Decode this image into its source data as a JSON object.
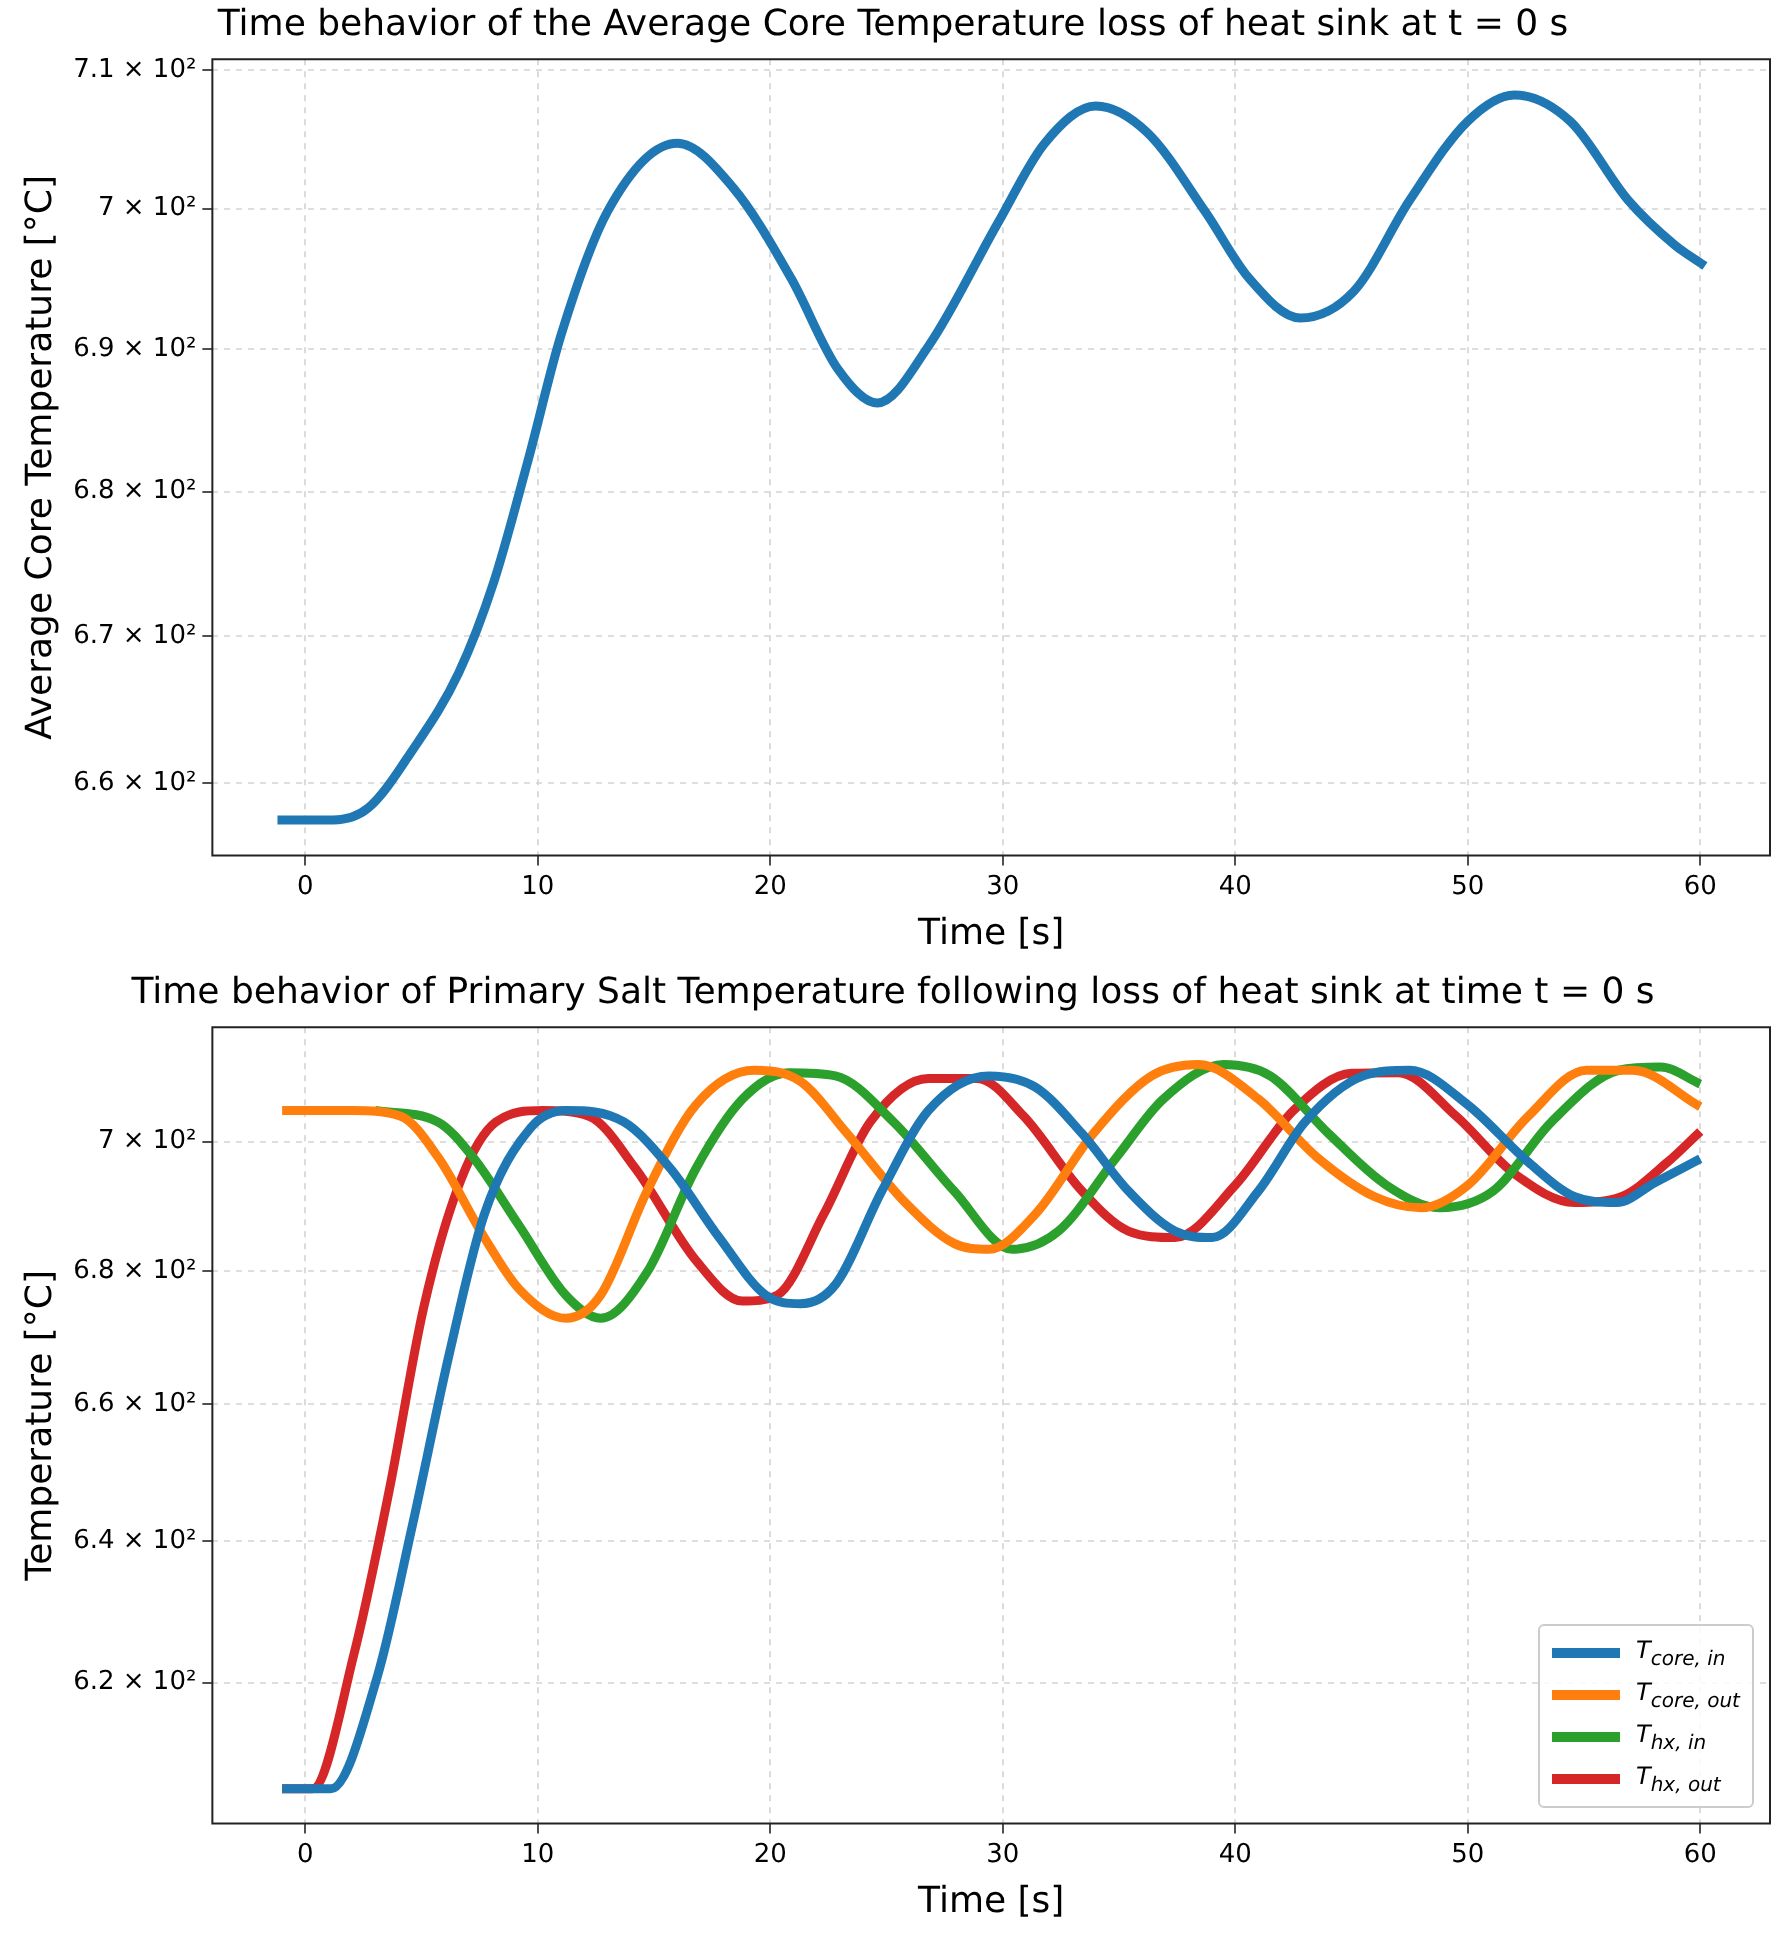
{
  "chart_data": [
    {
      "type": "line",
      "title": "Time behavior of the Average Core Temperature loss of heat sink at t = 0 s",
      "xlabel": "Time [s]",
      "ylabel": "Average Core Temperature [°C]",
      "series": [
        {
          "color": "#1f77b4",
          "x": [
            -1.2,
            1.2,
            2.7,
            4.6,
            6.6,
            8.1,
            9.6,
            11,
            13,
            16,
            18.4,
            20.9,
            22.9,
            24.6,
            26.8,
            29.8,
            31.8,
            34,
            36.2,
            38.7,
            40.6,
            42.8,
            45.1,
            47.5,
            50,
            52,
            54.4,
            56.9,
            58.9,
            60.2
          ],
          "values": [
            657.5,
            657.5,
            658.3,
            662.2,
            667.5,
            673.7,
            682.3,
            691.0,
            699.8,
            704.7,
            701.5,
            695.0,
            688.6,
            686.2,
            690.2,
            699.0,
            704.7,
            707.4,
            705.5,
            699.8,
            695.0,
            692.2,
            694.1,
            700.6,
            706.3,
            708.2,
            706.3,
            700.6,
            697.4,
            695.9
          ]
        }
      ],
      "xlim": [
        -4,
        63
      ],
      "xticks": [
        0,
        10,
        20,
        30,
        40,
        50,
        60
      ],
      "ylim": [
        655.1,
        710.8
      ],
      "yticks": [
        {
          "value": 660,
          "label": "6.6 × 10²"
        },
        {
          "value": 670,
          "label": "6.7 × 10²"
        },
        {
          "value": 680,
          "label": "6.8 × 10²"
        },
        {
          "value": 690,
          "label": "6.9 × 10²"
        },
        {
          "value": 700,
          "label": "7 × 10²"
        },
        {
          "value": 710,
          "label": "7.1 × 10²"
        }
      ],
      "log": "y",
      "grid": true
    },
    {
      "type": "line",
      "title": "Time behavior of Primary Salt Temperature following loss of heat sink at time t = 0 s",
      "xlabel": "Time [s]",
      "ylabel": "Temperature [°C]",
      "series": [
        {
          "name": "T$_{core, in}$",
          "color": "#1f77b4",
          "x": [
            -1,
            1.1,
            3.1,
            4.6,
            6.2,
            7.7,
            9.7,
            11.2,
            13.7,
            15.7,
            17.8,
            19.8,
            21.3,
            22.8,
            24.8,
            26.8,
            29.4,
            31.4,
            33.4,
            35.4,
            37.4,
            39,
            41,
            43,
            45.5,
            47.5,
            50,
            52.6,
            54.6,
            56.4,
            58.1,
            60
          ],
          "values": [
            605.4,
            605.4,
            620.9,
            642.2,
            667.6,
            688.7,
            702.2,
            704.9,
            703.1,
            695.8,
            685.1,
            676.3,
            675.0,
            677.9,
            692.3,
            704.9,
            710.4,
            708.6,
            701.3,
            692.3,
            686.1,
            685.1,
            692.3,
            703.1,
            710.4,
            711.3,
            705.8,
            696.8,
            691.4,
            690.5,
            693.7,
            697.3
          ]
        },
        {
          "name": "T$_{core, out}$",
          "color": "#ff7f0e",
          "x": [
            -1,
            2,
            4.1,
            5.7,
            7.7,
            9.2,
            11.2,
            12.7,
            14.7,
            16.8,
            19.3,
            21.3,
            23.3,
            25.8,
            27.9,
            29.4,
            31.4,
            33.9,
            36.4,
            38.4,
            41,
            43.5,
            46,
            48,
            50,
            52.6,
            55.1,
            57.1,
            60
          ],
          "values": [
            704.9,
            704.9,
            704.0,
            697.6,
            685.1,
            677.2,
            672.8,
            676.3,
            692.3,
            705.8,
            711.3,
            709.5,
            701.3,
            690.5,
            684.2,
            683.3,
            688.7,
            701.3,
            710.4,
            712.2,
            706.7,
            697.6,
            691.4,
            689.7,
            693.2,
            704.0,
            711.3,
            711.3,
            705.5
          ]
        },
        {
          "name": "T$_{hx, in}$",
          "color": "#2ca02c",
          "x": [
            3,
            5.7,
            7.2,
            9.2,
            11.2,
            12.7,
            14.7,
            16.8,
            18.8,
            20.8,
            22.8,
            25.3,
            27.9,
            30.4,
            32.4,
            34.9,
            36.9,
            39.5,
            41.5,
            44,
            46.5,
            48.8,
            51.1,
            53.6,
            56.5,
            58.3,
            60
          ],
          "values": [
            704.9,
            703.1,
            697.6,
            686.9,
            676.3,
            672.8,
            679.8,
            695.8,
            706.7,
            710.9,
            710.4,
            703.1,
            692.3,
            683.3,
            686.1,
            697.6,
            706.7,
            712.2,
            710.4,
            701.3,
            693.2,
            689.7,
            692.3,
            703.1,
            711.3,
            711.8,
            709.1
          ]
        },
        {
          "name": "T$_{hx, out}$",
          "color": "#d62728",
          "x": [
            -1,
            0.3,
            2.1,
            3.6,
            5.1,
            6.7,
            8.2,
            10.2,
            12.2,
            14.2,
            16.8,
            18.8,
            20.3,
            22.3,
            24.3,
            26.8,
            28.9,
            30.9,
            33.4,
            35.4,
            37.4,
            40,
            42.5,
            45,
            47,
            49.5,
            52,
            54.6,
            56.6,
            58.6,
            60
          ],
          "values": [
            605.4,
            605.4,
            624.1,
            647.2,
            674.6,
            694.1,
            703.1,
            704.9,
            704.0,
            695.8,
            681.6,
            675.4,
            676.3,
            688.7,
            703.1,
            710.0,
            710.0,
            704.0,
            692.3,
            686.1,
            685.1,
            693.2,
            704.9,
            710.8,
            710.9,
            704.0,
            695.0,
            690.5,
            691.4,
            696.8,
            701.6
          ]
        }
      ],
      "xlim": [
        -4,
        63
      ],
      "xticks": [
        0,
        10,
        20,
        30,
        40,
        50,
        60
      ],
      "ylim": [
        600.7,
        718.2
      ],
      "yticks": [
        {
          "value": 620,
          "label": "6.2 × 10²"
        },
        {
          "value": 640,
          "label": "6.4 × 10²"
        },
        {
          "value": 660,
          "label": "6.6 × 10²"
        },
        {
          "value": 680,
          "label": "6.8 × 10²"
        },
        {
          "value": 700,
          "label": "7 × 10²"
        }
      ],
      "log": "y",
      "grid": true,
      "legend": "bottom right"
    }
  ]
}
